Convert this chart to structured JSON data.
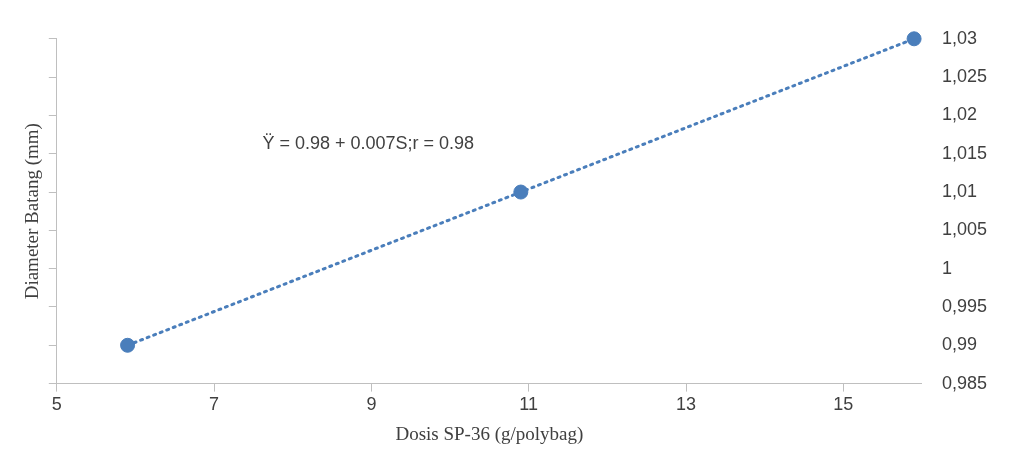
{
  "chart_data": {
    "type": "scatter",
    "xlabel": "Dosis SP-36 (g/polybag)",
    "ylabel": "Diameter Batang (mm)",
    "annotations": [
      "Ÿ = 0.98 + 0.007S;r = 0.98"
    ],
    "xlim": [
      5,
      16
    ],
    "xticks": [
      5,
      7,
      9,
      11,
      13,
      15
    ],
    "ylim": [
      0.985,
      1.03
    ],
    "yticks": [
      {
        "value": 0.985,
        "label": "0,985"
      },
      {
        "value": 0.99,
        "label": "0,99"
      },
      {
        "value": 0.995,
        "label": "0,995"
      },
      {
        "value": 1,
        "label": "1"
      },
      {
        "value": 1.005,
        "label": "1,005"
      },
      {
        "value": 1.01,
        "label": "1,01"
      },
      {
        "value": 1.015,
        "label": "1,015"
      },
      {
        "value": 1.02,
        "label": "1,02"
      },
      {
        "value": 1.025,
        "label": "1,025"
      },
      {
        "value": 1.03,
        "label": "1,03"
      }
    ],
    "grid": false,
    "legend": false,
    "marker": "circle",
    "series": [
      {
        "color": "#4a7ebb",
        "x": [
          5.9,
          10.9,
          15.9
        ],
        "values": [
          0.99,
          1.01,
          1.03
        ]
      },
      {
        "type": "line",
        "color": "#4a7ebb",
        "line_style": "dotted",
        "marker": "none",
        "x": [
          5.9,
          15.9
        ],
        "values": [
          0.99,
          1.03
        ]
      }
    ]
  }
}
